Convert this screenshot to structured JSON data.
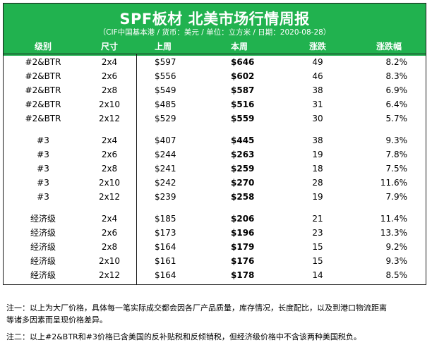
{
  "title": "SPF板材 北美市场行情周报",
  "subtitle": "（CIF中国基本港 / 货币：美元 / 单位：立方米 / 日期：2020-08-28）",
  "columns": [
    "级别",
    "尺寸",
    "上周",
    "本周",
    "涨跌",
    "涨跌幅"
  ],
  "groups": [
    {
      "rows": [
        [
          "#2&BTR",
          "2x4",
          "$597",
          "$646",
          "49",
          "8.2%"
        ],
        [
          "#2&BTR",
          "2x6",
          "$556",
          "$602",
          "46",
          "8.3%"
        ],
        [
          "#2&BTR",
          "2x8",
          "$549",
          "$587",
          "38",
          "6.9%"
        ],
        [
          "#2&BTR",
          "2x10",
          "$485",
          "$516",
          "31",
          "6.4%"
        ],
        [
          "#2&BTR",
          "2x12",
          "$529",
          "$559",
          "30",
          "5.7%"
        ]
      ]
    },
    {
      "rows": [
        [
          "#3",
          "2x4",
          "$407",
          "$445",
          "38",
          "9.3%"
        ],
        [
          "#3",
          "2x6",
          "$244",
          "$263",
          "19",
          "7.8%"
        ],
        [
          "#3",
          "2x8",
          "$241",
          "$259",
          "18",
          "7.5%"
        ],
        [
          "#3",
          "2x10",
          "$242",
          "$270",
          "28",
          "11.6%"
        ],
        [
          "#3",
          "2x12",
          "$239",
          "$258",
          "19",
          "7.9%"
        ]
      ]
    },
    {
      "rows": [
        [
          "经济级",
          "2x4",
          "$185",
          "$206",
          "21",
          "11.4%"
        ],
        [
          "经济级",
          "2x6",
          "$173",
          "$196",
          "23",
          "13.3%"
        ],
        [
          "经济级",
          "2x8",
          "$164",
          "$179",
          "15",
          "9.2%"
        ],
        [
          "经济级",
          "2x10",
          "$161",
          "$176",
          "15",
          "9.3%"
        ],
        [
          "经济级",
          "2x12",
          "$164",
          "$178",
          "14",
          "8.5%"
        ]
      ]
    }
  ],
  "notes": {
    "note1_line1": "注一：以上为大厂价格，具体每一笔实际成交都会因各厂产品质量，库存情况，长度配比，以及到港口物流距离",
    "note1_line2": "等诸多因素而呈现价格差异。",
    "note2": "注二：以上#2&BTR和#3价格已含美国的反补贴税和反倾销税，但经济级价格中不含该两种美国税负。"
  },
  "colors": {
    "header_bg": "#21b24f",
    "header_text": "#ffffff",
    "border": "#1a1a1a"
  }
}
